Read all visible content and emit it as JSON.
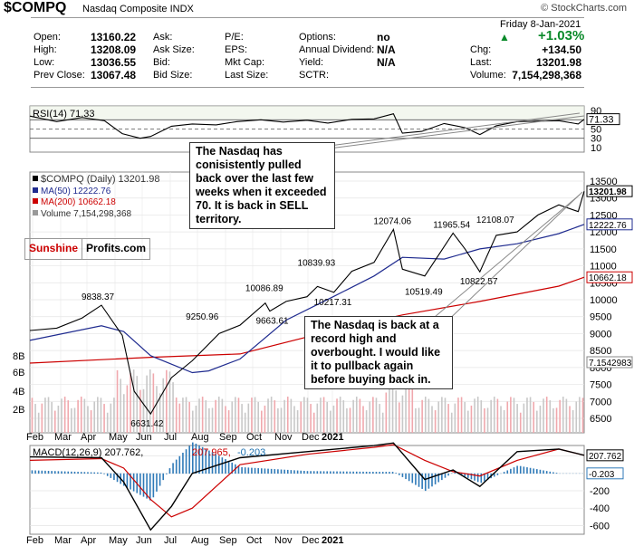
{
  "header": {
    "ticker": "$COMPQ",
    "name": "Nasdaq Composite INDX",
    "watermark": "© StockCharts.com",
    "date": "Friday   8-Jan-2021",
    "change_pct": "+1.03%"
  },
  "quote": {
    "col1": [
      [
        "Open:",
        "13160.22"
      ],
      [
        "High:",
        "13208.09"
      ],
      [
        "Low:",
        "13036.55"
      ],
      [
        "Prev Close:",
        "13067.48"
      ]
    ],
    "col2": [
      "Ask:",
      "Ask Size:",
      "Bid:",
      "Bid Size:"
    ],
    "col3": [
      "P/E:",
      "EPS:",
      "Mkt Cap:",
      "Last Size:"
    ],
    "col4": [
      [
        "Options:",
        "no"
      ],
      [
        "Annual Dividend:",
        "N/A"
      ],
      [
        "Yield:",
        "N/A"
      ],
      [
        "SCTR:",
        ""
      ]
    ],
    "col5": [
      [
        "Chg:",
        "+134.50"
      ],
      [
        "Last:",
        "13201.98"
      ],
      [
        "Volume:",
        "7,154,298,368"
      ]
    ]
  },
  "logo": {
    "part1": "Sunshine",
    "part2": "Profits.com"
  },
  "annotations": {
    "rsi_note": "The Nasdaq has conisistently pulled back over the last few weeks when it exceeded 70. It is back in SELL territory.",
    "price_note": "The Nasdaq is back at a record high and overbought. I would like it to pullback again before buying back in."
  },
  "chart_data": [
    {
      "type": "line",
      "title": "RSI(14) 71.33",
      "last_label": "71.33",
      "y_ticks": [
        90,
        70,
        50,
        30,
        10
      ],
      "ylim": [
        0,
        100
      ],
      "reference_lines": [
        30,
        50,
        70
      ],
      "x": [
        "Jan 2",
        "Jan 20",
        "Feb 6",
        "Feb 21",
        "Mar 4",
        "Mar 16",
        "Mar 23",
        "Apr 6",
        "Apr 20",
        "May 6",
        "May 20",
        "Jun 5",
        "Jun 20",
        "Jul 6",
        "Jul 20",
        "Aug 5",
        "Aug 20",
        "Sep 2",
        "Sep 8",
        "Sep 21",
        "Oct 6",
        "Oct 20",
        "Oct 30",
        "Nov 10",
        "Nov 24",
        "Dec 8",
        "Dec 22",
        "Jan 4",
        "Jan 8"
      ],
      "values": [
        78,
        66,
        75,
        68,
        40,
        30,
        34,
        56,
        61,
        59,
        66,
        70,
        65,
        69,
        63,
        71,
        72,
        83,
        41,
        45,
        62,
        53,
        38,
        57,
        66,
        67,
        68,
        61,
        71
      ]
    },
    {
      "type": "line",
      "title": "$COMPQ (Daily) 13201.98",
      "legend": [
        {
          "name": "$COMPQ (Daily) 13201.98",
          "color": "#000000"
        },
        {
          "name": "MA(50) 12222.76",
          "color": "#1f2b8f"
        },
        {
          "name": "MA(200) 10662.18",
          "color": "#cc0000"
        },
        {
          "name": "Volume 7,154,298,368",
          "color": "#999999"
        }
      ],
      "y_ticks": [
        13500,
        13000,
        12500,
        12000,
        11500,
        11000,
        10500,
        10000,
        9500,
        9000,
        8500,
        8000,
        7500,
        7000,
        6500
      ],
      "vol_ticks": [
        "8B",
        "6B",
        "4B",
        "2B"
      ],
      "last_labels": {
        "price": "13201.98",
        "ma50": "12222.76",
        "ma200": "10662.18",
        "volume": "7.1542983"
      },
      "x_labels": [
        "Feb",
        "Mar",
        "Apr",
        "May",
        "Jun",
        "Jul",
        "Aug",
        "Sep",
        "Oct",
        "Nov",
        "Dec",
        "2021"
      ],
      "price": {
        "x": [
          "Jan 2",
          "Jan 20",
          "Feb 6",
          "Feb 19",
          "Mar 4",
          "Mar 12",
          "Mar 23",
          "Apr 6",
          "Apr 20",
          "May 8",
          "May 22",
          "Jun 8",
          "Jun 11",
          "Jun 22",
          "Jul 6",
          "Jul 13",
          "Jul 24",
          "Aug 5",
          "Aug 20",
          "Sep 2",
          "Sep 8",
          "Sep 23",
          "Oct 12",
          "Oct 20",
          "Oct 30",
          "Nov 10",
          "Nov 24",
          "Dec 8",
          "Dec 22",
          "Jan 4",
          "Jan 8"
        ],
        "values": [
          9092,
          9160,
          9460,
          9838,
          8950,
          7300,
          6631,
          7700,
          8200,
          9000,
          9250,
          9900,
          9663,
          9950,
          10087,
          10390,
          10217,
          10839,
          11100,
          12074,
          10900,
          10700,
          11966,
          11500,
          10823,
          11900,
          12000,
          12500,
          12800,
          12600,
          13202
        ]
      },
      "ma50": {
        "x": [
          "Jan 2",
          "Feb 19",
          "Mar 5",
          "Mar 23",
          "Apr 20",
          "May 1",
          "May 22",
          "Jun 22",
          "Jul 24",
          "Aug 20",
          "Sep 8",
          "Oct 6",
          "Oct 30",
          "Nov 24",
          "Dec 22",
          "Jan 8"
        ],
        "values": [
          8800,
          9230,
          9060,
          8350,
          7850,
          7900,
          8250,
          9400,
          10100,
          10700,
          11250,
          11200,
          11500,
          11650,
          11950,
          12223
        ]
      },
      "ma200": {
        "x": [
          "Jan 2",
          "Mar 23",
          "May 22",
          "Jul 24",
          "Sep 8",
          "Oct 30",
          "Dec 22",
          "Jan 8"
        ],
        "values": [
          8130,
          8300,
          8400,
          9100,
          9550,
          9950,
          10400,
          10662
        ]
      },
      "labeled_points": [
        {
          "x": "Feb 19",
          "y": 9838.37,
          "text": "9838.37"
        },
        {
          "x": "Mar 23",
          "y": 6631.42,
          "text": "6631.42"
        },
        {
          "x": "Apr 29",
          "y": 9250.96,
          "text": "9250.96"
        },
        {
          "x": "Jun 8",
          "y": 10086.89,
          "text": "10086.89"
        },
        {
          "x": "Jun 15",
          "y": 9663.61,
          "text": "9663.61"
        },
        {
          "x": "Jul 13",
          "y": 10839.93,
          "text": "10839.93"
        },
        {
          "x": "Jul 24",
          "y": 10217.31,
          "text": "10217.31"
        },
        {
          "x": "Sep 2",
          "y": 12074.06,
          "text": "12074.06"
        },
        {
          "x": "Sep 23",
          "y": 10519.49,
          "text": "10519.49"
        },
        {
          "x": "Oct 12",
          "y": 11965.54,
          "text": "11965.54"
        },
        {
          "x": "Oct 30",
          "y": 10822.57,
          "text": "10822.57"
        },
        {
          "x": "Nov 10",
          "y": 12108.07,
          "text": "12108.07"
        }
      ]
    },
    {
      "type": "line",
      "title": "MACD(12,26,9) 207.762, 207.965, -0.203",
      "legend": [
        {
          "name": "MACD(12,26,9) 207.762",
          "color": "#000000"
        },
        {
          "name": "207.965",
          "color": "#cc0000"
        },
        {
          "name": "-0.203",
          "color": "#1a6faf"
        }
      ],
      "y_ticks": [
        200,
        0,
        -200,
        -400,
        -600
      ],
      "last_labels": {
        "macd": "207.762",
        "hist": "-0.203"
      },
      "x_labels": [
        "Feb",
        "Mar",
        "Apr",
        "May",
        "Jun",
        "Jul",
        "Aug",
        "Sep",
        "Oct",
        "Nov",
        "Dec",
        "2021"
      ],
      "x": [
        "Jan 2",
        "Feb 19",
        "Mar 5",
        "Mar 23",
        "Apr 6",
        "Apr 20",
        "May 22",
        "Jul 6",
        "Aug 20",
        "Sep 2",
        "Sep 23",
        "Oct 12",
        "Oct 30",
        "Nov 24",
        "Dec 22",
        "Jan 8"
      ],
      "macd": [
        190,
        180,
        -100,
        -650,
        -380,
        0,
        180,
        250,
        320,
        350,
        -70,
        40,
        -150,
        250,
        280,
        208
      ],
      "signal": [
        150,
        170,
        60,
        -300,
        -500,
        -400,
        100,
        220,
        300,
        330,
        150,
        20,
        -30,
        150,
        280,
        208
      ]
    }
  ]
}
